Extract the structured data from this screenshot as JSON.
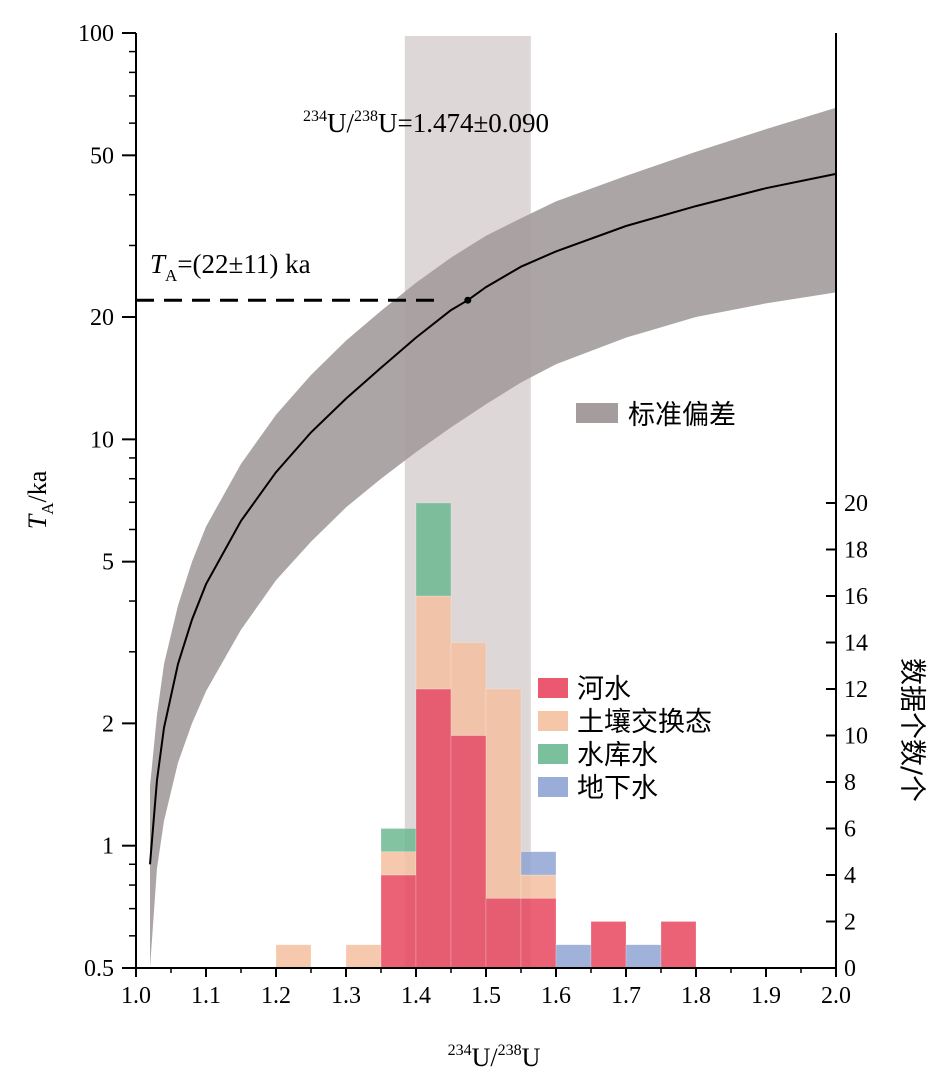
{
  "chart_data": {
    "type": "bar",
    "title": "",
    "xlabel": "²³⁴U/²³⁸U",
    "ylabel_left": "T_A/ka",
    "ylabel_left_main": "T",
    "ylabel_left_sub": "A",
    "ylabel_left_suffix": "/ka",
    "ylabel_right": "数据个数/个",
    "xlim": [
      1.0,
      2.0
    ],
    "ylim_left": [
      0.5,
      100
    ],
    "yscale_left": "log",
    "ylim_right": [
      0,
      20
    ],
    "x_ticks": [
      "1.0",
      "1.1",
      "1.2",
      "1.3",
      "1.4",
      "1.5",
      "1.6",
      "1.7",
      "1.8",
      "1.9",
      "2.0"
    ],
    "y_left_ticks": [
      {
        "value": 0.5,
        "label": "0.5"
      },
      {
        "value": 1,
        "label": "1"
      },
      {
        "value": 2,
        "label": "2"
      },
      {
        "value": 5,
        "label": "5"
      },
      {
        "value": 10,
        "label": "10"
      },
      {
        "value": 20,
        "label": "20"
      },
      {
        "value": 50,
        "label": "50"
      },
      {
        "value": 100,
        "label": "100"
      }
    ],
    "y_right_ticks": [
      "0",
      "2",
      "4",
      "6",
      "8",
      "10",
      "12",
      "14",
      "16",
      "18",
      "20"
    ],
    "bin_width": 0.05,
    "histogram": [
      {
        "bin_start": 1.2,
        "河水": 0,
        "土壤交换态": 1,
        "水库水": 0,
        "地下水": 0
      },
      {
        "bin_start": 1.3,
        "河水": 0,
        "土壤交换态": 1,
        "水库水": 0,
        "地下水": 0
      },
      {
        "bin_start": 1.35,
        "河水": 4,
        "土壤交换态": 1,
        "水库水": 1,
        "地下水": 0
      },
      {
        "bin_start": 1.4,
        "河水": 12,
        "土壤交换态": 4,
        "水库水": 4,
        "地下水": 0
      },
      {
        "bin_start": 1.45,
        "河水": 10,
        "土壤交换态": 4,
        "水库水": 0,
        "地下水": 0
      },
      {
        "bin_start": 1.5,
        "河水": 3,
        "土壤交换态": 9,
        "水库水": 0,
        "地下水": 0
      },
      {
        "bin_start": 1.55,
        "河水": 3,
        "土壤交换态": 1,
        "水库水": 0,
        "地下水": 1
      },
      {
        "bin_start": 1.6,
        "河水": 0,
        "土壤交换态": 0,
        "水库水": 0,
        "地下水": 1
      },
      {
        "bin_start": 1.65,
        "河水": 2,
        "土壤交换态": 0,
        "水库水": 0,
        "地下水": 0
      },
      {
        "bin_start": 1.7,
        "河水": 0,
        "土壤交换态": 0,
        "水库水": 0,
        "地下水": 1
      },
      {
        "bin_start": 1.75,
        "河水": 2,
        "土壤交换态": 0,
        "水库水": 0,
        "地下水": 0
      }
    ],
    "series": [
      {
        "name": "河水",
        "color": "#e8475f"
      },
      {
        "name": "土壤交换态",
        "color": "#f5c0a0"
      },
      {
        "name": "水库水",
        "color": "#6db992"
      },
      {
        "name": "地下水",
        "color": "#8fa4d4"
      }
    ],
    "curve": {
      "x": [
        1.02,
        1.03,
        1.04,
        1.06,
        1.08,
        1.1,
        1.15,
        1.2,
        1.25,
        1.3,
        1.35,
        1.4,
        1.45,
        1.474,
        1.5,
        1.55,
        1.6,
        1.7,
        1.8,
        1.9,
        2.0
      ],
      "y": [
        0.9,
        1.45,
        1.95,
        2.8,
        3.6,
        4.4,
        6.3,
        8.3,
        10.4,
        12.6,
        15.0,
        17.8,
        20.8,
        22,
        23.7,
        26.6,
        29.0,
        33.5,
        37.5,
        41.5,
        45.0
      ],
      "color": "#000000"
    },
    "std_band": {
      "x": [
        1.02,
        1.03,
        1.04,
        1.06,
        1.08,
        1.1,
        1.15,
        1.2,
        1.25,
        1.3,
        1.35,
        1.4,
        1.45,
        1.5,
        1.55,
        1.6,
        1.7,
        1.8,
        1.9,
        2.0
      ],
      "upper": [
        1.4,
        2.1,
        2.8,
        3.9,
        5.0,
        6.1,
        8.7,
        11.5,
        14.4,
        17.5,
        20.7,
        24.3,
        28.0,
        31.7,
        35.0,
        38.5,
        44.5,
        51.0,
        58.0,
        65.5
      ],
      "lower": [
        0.5,
        0.88,
        1.15,
        1.6,
        2.0,
        2.4,
        3.4,
        4.5,
        5.6,
        6.8,
        8.0,
        9.3,
        10.7,
        12.2,
        13.8,
        15.3,
        17.8,
        20.0,
        21.6,
        23.0
      ],
      "color": "#a59d9d"
    },
    "vertical_band": {
      "x_from": 1.384,
      "x_to": 1.564,
      "color": "#ddd7d7"
    },
    "annotations": {
      "ratio_sup1": "234",
      "ratio_mid": "U/",
      "ratio_sup2": "238",
      "ratio_end": "U=1.474±0.090",
      "age_main": "T",
      "age_sub": "A",
      "age_end": "=(22±11) ka",
      "point_x": 1.474,
      "point_y": 22
    },
    "xlabel_parts": {
      "sup1": "234",
      "mid": "U/",
      "sup2": "238",
      "end": "U"
    },
    "legend": {
      "placement": "right-middle",
      "std_label": "标准偏差",
      "items": [
        "河水",
        "土壤交换态",
        "水库水",
        "地下水"
      ]
    },
    "grid": false
  }
}
